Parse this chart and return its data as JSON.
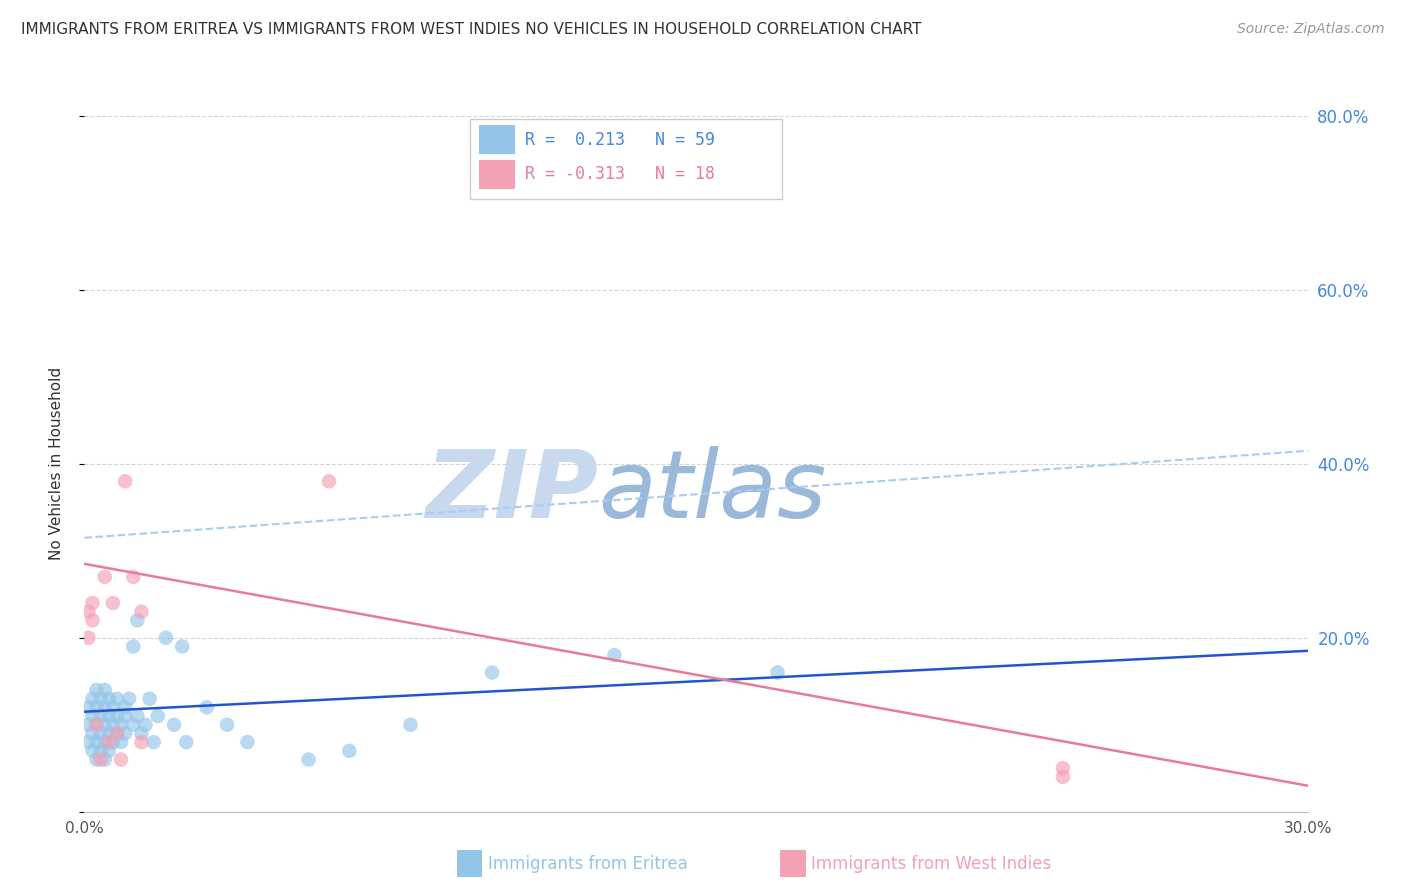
{
  "title": "IMMIGRANTS FROM ERITREA VS IMMIGRANTS FROM WEST INDIES NO VEHICLES IN HOUSEHOLD CORRELATION CHART",
  "source": "Source: ZipAtlas.com",
  "ylabel": "No Vehicles in Household",
  "x_label_bottom_blue": "Immigrants from Eritrea",
  "x_label_bottom_pink": "Immigrants from West Indies",
  "xlim": [
    0.0,
    0.3
  ],
  "ylim": [
    0.0,
    0.8
  ],
  "x_ticks": [
    0.0,
    0.05,
    0.1,
    0.15,
    0.2,
    0.25,
    0.3
  ],
  "x_tick_labels": [
    "0.0%",
    "",
    "",
    "",
    "",
    "",
    "30.0%"
  ],
  "y_ticks": [
    0.0,
    0.2,
    0.4,
    0.6,
    0.8
  ],
  "y_tick_labels_right": [
    "",
    "20.0%",
    "40.0%",
    "60.0%",
    "80.0%"
  ],
  "legend_R_blue": "R =  0.213",
  "legend_N_blue": "N = 59",
  "legend_R_pink": "R = -0.313",
  "legend_N_pink": "N = 18",
  "blue_color": "#93c5e8",
  "pink_color": "#f4a0b5",
  "trend_blue_color": "#2255cc",
  "trend_pink_color": "#e87a9a",
  "dashed_line_color": "#aaccee",
  "watermark_ZIP_color": "#c8d8ee",
  "watermark_atlas_color": "#9ab8d8",
  "background_color": "#ffffff",
  "grid_color": "#cccccc",
  "blue_scatter_x": [
    0.001,
    0.001,
    0.001,
    0.002,
    0.002,
    0.002,
    0.002,
    0.003,
    0.003,
    0.003,
    0.003,
    0.003,
    0.004,
    0.004,
    0.004,
    0.004,
    0.005,
    0.005,
    0.005,
    0.005,
    0.005,
    0.006,
    0.006,
    0.006,
    0.006,
    0.007,
    0.007,
    0.007,
    0.008,
    0.008,
    0.008,
    0.009,
    0.009,
    0.01,
    0.01,
    0.01,
    0.011,
    0.012,
    0.012,
    0.013,
    0.013,
    0.014,
    0.015,
    0.016,
    0.017,
    0.018,
    0.02,
    0.022,
    0.024,
    0.025,
    0.03,
    0.035,
    0.04,
    0.055,
    0.065,
    0.08,
    0.1,
    0.13,
    0.17
  ],
  "blue_scatter_y": [
    0.1,
    0.12,
    0.08,
    0.09,
    0.11,
    0.13,
    0.07,
    0.1,
    0.12,
    0.08,
    0.14,
    0.06,
    0.11,
    0.09,
    0.13,
    0.07,
    0.12,
    0.08,
    0.1,
    0.14,
    0.06,
    0.11,
    0.09,
    0.13,
    0.07,
    0.1,
    0.12,
    0.08,
    0.11,
    0.09,
    0.13,
    0.1,
    0.08,
    0.12,
    0.09,
    0.11,
    0.13,
    0.1,
    0.19,
    0.11,
    0.22,
    0.09,
    0.1,
    0.13,
    0.08,
    0.11,
    0.2,
    0.1,
    0.19,
    0.08,
    0.12,
    0.1,
    0.08,
    0.06,
    0.07,
    0.1,
    0.16,
    0.18,
    0.16
  ],
  "pink_scatter_x": [
    0.001,
    0.001,
    0.002,
    0.002,
    0.003,
    0.004,
    0.005,
    0.006,
    0.007,
    0.008,
    0.009,
    0.01,
    0.012,
    0.014,
    0.014,
    0.06,
    0.24,
    0.24
  ],
  "pink_scatter_y": [
    0.23,
    0.2,
    0.24,
    0.22,
    0.1,
    0.06,
    0.27,
    0.08,
    0.24,
    0.09,
    0.06,
    0.38,
    0.27,
    0.08,
    0.23,
    0.38,
    0.04,
    0.05
  ],
  "blue_trend_x": [
    0.0,
    0.3
  ],
  "blue_trend_y": [
    0.115,
    0.185
  ],
  "pink_trend_x": [
    0.0,
    0.3
  ],
  "pink_trend_y": [
    0.285,
    0.03
  ],
  "dashed_trend_x": [
    0.0,
    0.3
  ],
  "dashed_trend_y": [
    0.315,
    0.415
  ]
}
